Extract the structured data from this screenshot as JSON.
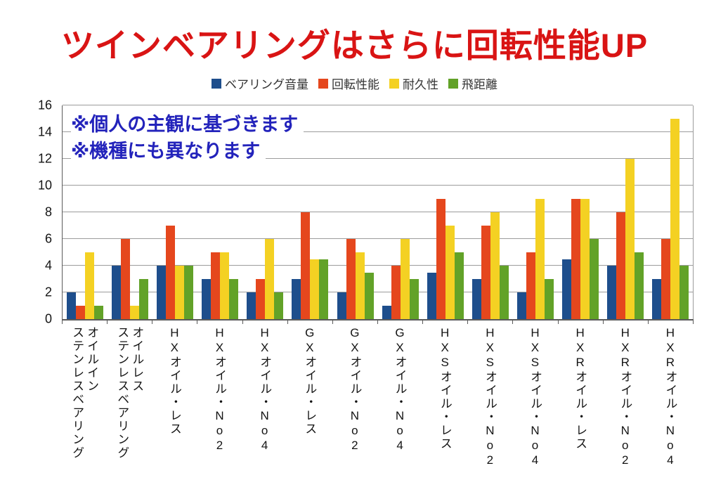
{
  "colors": {
    "background": "#ffffff",
    "title": "#d91414",
    "annotation": "#2323bb",
    "grid": "#9c9c9c",
    "axis": "#5a5a5a",
    "text": "#141414",
    "legend_text": "#333333"
  },
  "annotation": {
    "lines": [
      "※個人の主観に基づきます",
      "※機種にも異なります"
    ]
  },
  "chart_data": {
    "type": "bar",
    "title": "ツインベアリングはさらに回転性能UP",
    "annotations": [
      "※個人の主観に基づきます",
      "※機種にも異なります"
    ],
    "legend_position": "top",
    "grid": true,
    "ylim": [
      0,
      16
    ],
    "yticks": [
      0,
      2,
      4,
      6,
      8,
      10,
      12,
      14,
      16
    ],
    "xlabel": "",
    "ylabel": "",
    "categories": [
      "オイルインステンレスベアリング",
      "オイルレスステンレスベアリング",
      "HXオイル・レス",
      "HXオイル・No2",
      "HXオイル・No4",
      "GXオイル・レス",
      "GXオイル・No2",
      "GXオイル・No4",
      "HXSオイル・レス",
      "HXSオイル・No2",
      "HXSオイル・No4",
      "HXRオイル・レス",
      "HXRオイル・No2",
      "HXRオイル・No4"
    ],
    "category_lines": [
      [
        "オイルイン",
        "ステンレスベアリング"
      ],
      [
        "オイルレス",
        "ステンレスベアリング"
      ],
      [
        "HXオイル・レス"
      ],
      [
        "HXオイル・No2"
      ],
      [
        "HXオイル・No4"
      ],
      [
        "GXオイル・レス"
      ],
      [
        "GXオイル・No2"
      ],
      [
        "GXオイル・No4"
      ],
      [
        "HXSオイル・レス"
      ],
      [
        "HXSオイル・No2"
      ],
      [
        "HXSオイル・No4"
      ],
      [
        "HXRオイル・レス"
      ],
      [
        "HXRオイル・No2"
      ],
      [
        "HXRオイル・No4"
      ]
    ],
    "series": [
      {
        "name": "ベアリング音量",
        "color": "#1e4e8c",
        "values": [
          2,
          4,
          4,
          3,
          2,
          3,
          2,
          1,
          3.5,
          3,
          2,
          4.5,
          4,
          3
        ]
      },
      {
        "name": "回転性能",
        "color": "#e5471d",
        "values": [
          1,
          6,
          7,
          5,
          3,
          8,
          6,
          4,
          9,
          7,
          5,
          9,
          8,
          6
        ]
      },
      {
        "name": "耐久性",
        "color": "#f4d123",
        "values": [
          5,
          1,
          4,
          5,
          6,
          4.5,
          5,
          6,
          7,
          8,
          9,
          9,
          12,
          15
        ]
      },
      {
        "name": "飛距離",
        "color": "#62a228",
        "values": [
          1,
          3,
          4,
          3,
          2,
          4.5,
          3.5,
          3,
          5,
          4,
          3,
          6,
          5,
          4
        ]
      }
    ]
  }
}
